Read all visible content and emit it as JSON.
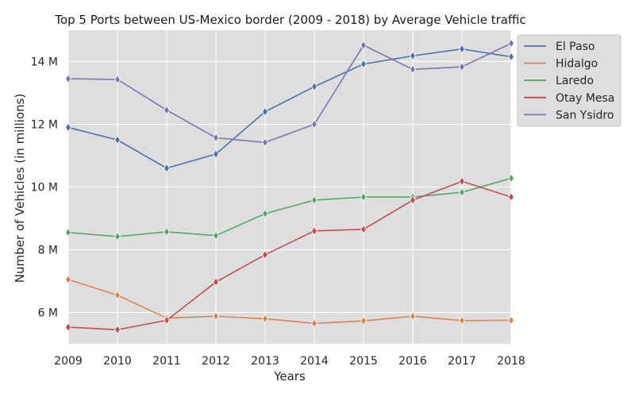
{
  "chart_data": {
    "type": "line",
    "title": "Top 5 Ports between US-Mexico border (2009 - 2018) by Average Vehicle traffic",
    "xlabel": "Years",
    "ylabel": "Number of Vehicles (in millions)",
    "x": [
      2009,
      2010,
      2011,
      2012,
      2013,
      2014,
      2015,
      2016,
      2017,
      2018
    ],
    "xlim": [
      2009,
      2018
    ],
    "ylim": [
      5.0,
      15.0
    ],
    "yticks": [
      6,
      8,
      10,
      12,
      14
    ],
    "ytick_labels": [
      "6 M",
      "8 M",
      "10 M",
      "12 M",
      "14 M"
    ],
    "grid": true,
    "legend_position": "top-right",
    "marker": "diamond",
    "series": [
      {
        "name": "El Paso",
        "color": "#4c72b0",
        "values": [
          11.9,
          11.5,
          10.6,
          11.05,
          12.4,
          13.2,
          13.92,
          14.18,
          14.4,
          14.15
        ]
      },
      {
        "name": "Hidalgo",
        "color": "#dd8452",
        "values": [
          7.05,
          6.55,
          5.82,
          5.88,
          5.8,
          5.65,
          5.73,
          5.88,
          5.74,
          5.75
        ]
      },
      {
        "name": "Laredo",
        "color": "#55a868",
        "values": [
          8.55,
          8.42,
          8.57,
          8.45,
          9.15,
          9.58,
          9.68,
          9.68,
          9.83,
          10.28
        ]
      },
      {
        "name": "Otay Mesa",
        "color": "#c44e52",
        "values": [
          5.53,
          5.45,
          5.75,
          6.97,
          7.84,
          8.6,
          8.65,
          9.58,
          10.18,
          9.68
        ]
      },
      {
        "name": "San Ysidro",
        "color": "#8172b3",
        "values": [
          13.45,
          13.43,
          12.45,
          11.57,
          11.42,
          12.0,
          14.52,
          13.75,
          13.83,
          14.58
        ]
      }
    ]
  }
}
